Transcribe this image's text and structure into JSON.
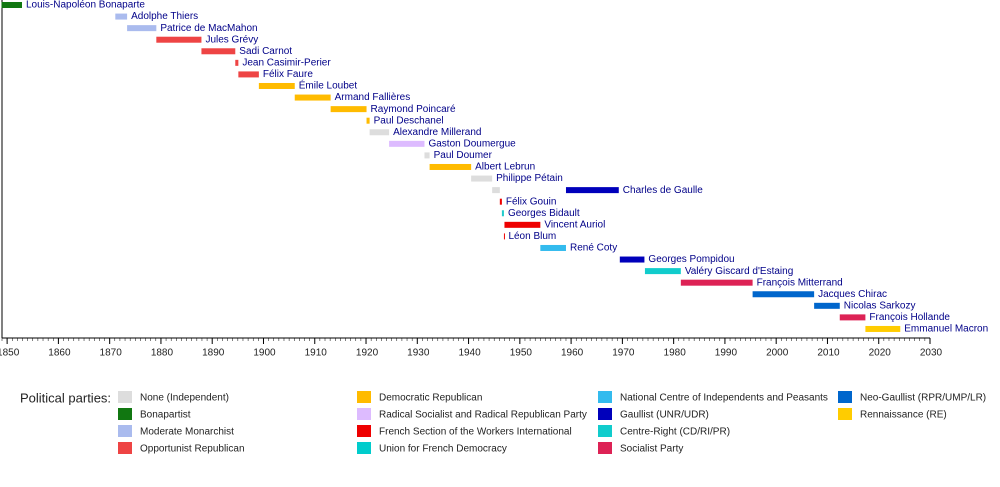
{
  "chart_data": {
    "type": "timeline",
    "xlim": [
      1849,
      2030
    ],
    "xticks": [
      1850,
      1860,
      1870,
      1880,
      1890,
      1900,
      1910,
      1920,
      1930,
      1940,
      1950,
      1960,
      1970,
      1980,
      1990,
      2000,
      2010,
      2020,
      2030
    ],
    "rows": [
      {
        "name": "Louis-Napoléon Bonaparte",
        "terms": [
          {
            "start": 1848.9,
            "end": 1852.9,
            "color": "#117711"
          }
        ]
      },
      {
        "name": "Adolphe Thiers",
        "terms": [
          {
            "start": 1871.1,
            "end": 1873.4,
            "color": "#aabbee"
          }
        ]
      },
      {
        "name": "Patrice de MacMahon",
        "terms": [
          {
            "start": 1873.4,
            "end": 1879.1,
            "color": "#aabbee"
          }
        ]
      },
      {
        "name": "Jules Grévy",
        "terms": [
          {
            "start": 1879.1,
            "end": 1887.9,
            "color": "#ee4444"
          }
        ]
      },
      {
        "name": "Sadi Carnot",
        "terms": [
          {
            "start": 1887.9,
            "end": 1894.5,
            "color": "#ee4444"
          }
        ]
      },
      {
        "name": "Jean Casimir-Perier",
        "terms": [
          {
            "start": 1894.5,
            "end": 1895.1,
            "color": "#ee4444"
          }
        ]
      },
      {
        "name": "Félix Faure",
        "terms": [
          {
            "start": 1895.1,
            "end": 1899.1,
            "color": "#ee4444"
          }
        ]
      },
      {
        "name": "Émile Loubet",
        "terms": [
          {
            "start": 1899.1,
            "end": 1906.1,
            "color": "#ffbb00"
          }
        ]
      },
      {
        "name": "Armand Fallières",
        "terms": [
          {
            "start": 1906.1,
            "end": 1913.1,
            "color": "#ffbb00"
          }
        ]
      },
      {
        "name": "Raymond Poincaré",
        "terms": [
          {
            "start": 1913.1,
            "end": 1920.1,
            "color": "#ffbb00"
          }
        ]
      },
      {
        "name": "Paul Deschanel",
        "terms": [
          {
            "start": 1920.1,
            "end": 1920.7,
            "color": "#ffbb00"
          }
        ]
      },
      {
        "name": "Alexandre Millerand",
        "terms": [
          {
            "start": 1920.7,
            "end": 1924.5,
            "color": "#dddddd"
          }
        ]
      },
      {
        "name": "Gaston Doumergue",
        "terms": [
          {
            "start": 1924.5,
            "end": 1931.4,
            "color": "#ddbbff"
          }
        ]
      },
      {
        "name": "Paul Doumer",
        "terms": [
          {
            "start": 1931.4,
            "end": 1932.4,
            "color": "#dddddd"
          }
        ]
      },
      {
        "name": "Albert Lebrun",
        "terms": [
          {
            "start": 1932.4,
            "end": 1940.5,
            "color": "#ffbb00"
          }
        ]
      },
      {
        "name": "Philippe Pétain",
        "terms": [
          {
            "start": 1940.5,
            "end": 1944.6,
            "color": "#dddddd"
          }
        ]
      },
      {
        "name": "Charles de Gaulle",
        "terms": [
          {
            "start": 1944.6,
            "end": 1946.1,
            "color": "#dddddd"
          },
          {
            "start": 1959.0,
            "end": 1969.3,
            "color": "#0000bb"
          }
        ]
      },
      {
        "name": "Félix Gouin",
        "terms": [
          {
            "start": 1946.1,
            "end": 1946.5,
            "color": "#ee0000"
          }
        ]
      },
      {
        "name": "Georges Bidault",
        "terms": [
          {
            "start": 1946.5,
            "end": 1946.9,
            "color": "#22cccc"
          }
        ]
      },
      {
        "name": "Vincent Auriol",
        "terms": [
          {
            "start": 1947.0,
            "end": 1954.0,
            "color": "#ee0000"
          }
        ]
      },
      {
        "name": "Léon Blum",
        "terms": [
          {
            "start": 1946.9,
            "end": 1947.0,
            "color": "#ee0000"
          }
        ]
      },
      {
        "name": "René Coty",
        "terms": [
          {
            "start": 1954.0,
            "end": 1959.0,
            "color": "#33bbee"
          }
        ]
      },
      {
        "name": "Georges Pompidou",
        "terms": [
          {
            "start": 1969.5,
            "end": 1974.3,
            "color": "#0000bb"
          }
        ]
      },
      {
        "name": "Valéry Giscard d'Estaing",
        "terms": [
          {
            "start": 1974.4,
            "end": 1981.4,
            "color": "#11cccc"
          }
        ]
      },
      {
        "name": "François Mitterrand",
        "terms": [
          {
            "start": 1981.4,
            "end": 1995.4,
            "color": "#dd2255"
          }
        ]
      },
      {
        "name": "Jacques Chirac",
        "terms": [
          {
            "start": 1995.4,
            "end": 2007.4,
            "color": "#0066cc"
          }
        ]
      },
      {
        "name": "Nicolas Sarkozy",
        "terms": [
          {
            "start": 2007.4,
            "end": 2012.4,
            "color": "#0066cc"
          }
        ]
      },
      {
        "name": "François Hollande",
        "terms": [
          {
            "start": 2012.4,
            "end": 2017.4,
            "color": "#dd2255"
          }
        ]
      },
      {
        "name": "Emmanuel Macron",
        "terms": [
          {
            "start": 2017.4,
            "end": 2024.2,
            "color": "#ffcc00"
          }
        ]
      }
    ],
    "legend_title": "Political parties:",
    "legend": [
      {
        "name": "None (Independent)",
        "color": "#dddddd"
      },
      {
        "name": "Bonapartist",
        "color": "#117711"
      },
      {
        "name": "Moderate Monarchist",
        "color": "#aabbee"
      },
      {
        "name": "Opportunist Republican",
        "color": "#ee4444"
      },
      {
        "name": "Democratic Republican",
        "color": "#ffbb00"
      },
      {
        "name": "Radical Socialist and Radical Republican Party",
        "color": "#ddbbff"
      },
      {
        "name": "French Section of the Workers International",
        "color": "#ee0000"
      },
      {
        "name": "Union for French Democracy",
        "color": "#00cccc"
      },
      {
        "name": "National Centre of Independents and Peasants",
        "color": "#33bbee"
      },
      {
        "name": "Gaullist (UNR/UDR)",
        "color": "#0000bb"
      },
      {
        "name": "Centre-Right (CD/RI/PR)",
        "color": "#11cccc"
      },
      {
        "name": "Socialist Party",
        "color": "#dd2255"
      },
      {
        "name": "Neo-Gaullist (RPR/UMP/LR)",
        "color": "#0066cc"
      },
      {
        "name": "Rennaissance (RE)",
        "color": "#ffcc00"
      }
    ]
  }
}
